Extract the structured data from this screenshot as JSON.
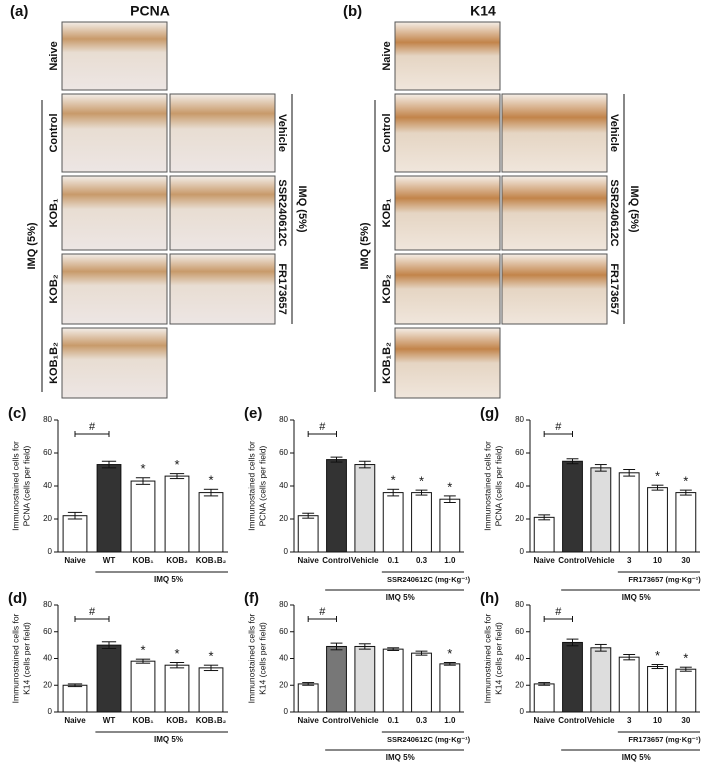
{
  "panel_a": {
    "label": "(a)",
    "title": "PCNA",
    "naive": "Naive",
    "rows": [
      "Control",
      "KOB₁",
      "KOB₂",
      "KOB₁B₂"
    ],
    "right_rows": [
      "Vehicle",
      "SSR240612C",
      "FR173657"
    ],
    "left_group": "IMQ (5%)",
    "right_group": "IMQ (5%)"
  },
  "panel_b": {
    "label": "(b)",
    "title": "K14",
    "naive": "Naive",
    "rows": [
      "Control",
      "KOB₁",
      "KOB₂",
      "KOB₁B₂"
    ],
    "right_rows": [
      "Vehicle",
      "SSR240612C",
      "FR173657"
    ],
    "left_group": "IMQ (5%)",
    "right_group": "IMQ (5%)"
  },
  "chart_data": [
    {
      "type": "bar",
      "panel": "(c)",
      "ylabel": [
        "Immunostained cells for",
        "PCNA (cells per field)"
      ],
      "categories": [
        "Naive",
        "WT",
        "KOB₁",
        "KOB₂",
        "KOB₁B₂"
      ],
      "values": [
        22,
        53,
        43,
        46,
        36
      ],
      "errors": [
        2,
        2,
        2,
        1.5,
        2
      ],
      "colors": [
        "#ffffff",
        "#333333",
        "#ffffff",
        "#ffffff",
        "#ffffff"
      ],
      "ylim": [
        0,
        80
      ],
      "yticks": [
        0,
        20,
        40,
        60,
        80
      ],
      "bracket": "#",
      "significance": [
        null,
        null,
        "*",
        "*",
        "*"
      ],
      "group_label": "IMQ 5%"
    },
    {
      "type": "bar",
      "panel": "(e)",
      "ylabel": [
        "Immunostained cells for",
        "PCNA (cells per field)"
      ],
      "categories": [
        "Naive",
        "Control",
        "Vehicle",
        "0.1",
        "0.3",
        "1.0"
      ],
      "values": [
        22,
        56,
        53,
        36,
        36,
        32
      ],
      "errors": [
        1.5,
        1.5,
        2,
        2,
        1.5,
        2
      ],
      "colors": [
        "#ffffff",
        "#333333",
        "#dddddd",
        "#ffffff",
        "#ffffff",
        "#ffffff"
      ],
      "ylim": [
        0,
        80
      ],
      "yticks": [
        0,
        20,
        40,
        60,
        80
      ],
      "bracket": "#",
      "significance": [
        null,
        null,
        null,
        "*",
        "*",
        "*"
      ],
      "dose_label": "SSR240612C (mg·Kg⁻¹)",
      "group_label": "IMQ 5%"
    },
    {
      "type": "bar",
      "panel": "(g)",
      "ylabel": [
        "Immunostained cells for",
        "PCNA (cells per field)"
      ],
      "categories": [
        "Naive",
        "Control",
        "Vehicle",
        "3",
        "10",
        "30"
      ],
      "values": [
        21,
        55,
        51,
        48,
        39,
        36
      ],
      "errors": [
        1.5,
        1.5,
        2,
        2,
        1.5,
        1.5
      ],
      "colors": [
        "#ffffff",
        "#333333",
        "#dddddd",
        "#ffffff",
        "#ffffff",
        "#ffffff"
      ],
      "ylim": [
        0,
        80
      ],
      "yticks": [
        0,
        20,
        40,
        60,
        80
      ],
      "bracket": "#",
      "significance": [
        null,
        null,
        null,
        null,
        "*",
        "*"
      ],
      "dose_label": "FR173657 (mg·Kg⁻¹)",
      "group_label": "IMQ 5%"
    },
    {
      "type": "bar",
      "panel": "(d)",
      "ylabel": [
        "Immunostained cells for",
        "K14 (cells per field)"
      ],
      "categories": [
        "Naive",
        "WT",
        "KOB₁",
        "KOB₂",
        "KOB₁B₂"
      ],
      "values": [
        20,
        50,
        38,
        35,
        33
      ],
      "errors": [
        1,
        2.5,
        1.5,
        2,
        2
      ],
      "colors": [
        "#ffffff",
        "#333333",
        "#ffffff",
        "#ffffff",
        "#ffffff"
      ],
      "ylim": [
        0,
        80
      ],
      "yticks": [
        0,
        20,
        40,
        60,
        80
      ],
      "bracket": "#",
      "significance": [
        null,
        null,
        "*",
        "*",
        "*"
      ],
      "group_label": "IMQ 5%"
    },
    {
      "type": "bar",
      "panel": "(f)",
      "ylabel": [
        "Immunostained cells for",
        "K14 (cells per field)"
      ],
      "categories": [
        "Naive",
        "Control",
        "Vehicle",
        "0.1",
        "0.3",
        "1.0"
      ],
      "values": [
        21,
        49,
        49,
        47,
        44,
        36
      ],
      "errors": [
        1,
        2.5,
        2,
        1,
        1.5,
        1
      ],
      "colors": [
        "#ffffff",
        "#777777",
        "#dddddd",
        "#ffffff",
        "#ffffff",
        "#ffffff"
      ],
      "ylim": [
        0,
        80
      ],
      "yticks": [
        0,
        20,
        40,
        60,
        80
      ],
      "bracket": "#",
      "significance": [
        null,
        null,
        null,
        null,
        null,
        "*"
      ],
      "dose_label": "SSR240612C (mg·Kg⁻¹)",
      "group_label": "IMQ 5%"
    },
    {
      "type": "bar",
      "panel": "(h)",
      "ylabel": [
        "Immunostained cells for",
        "K14 (cells per field)"
      ],
      "categories": [
        "Naive",
        "Control",
        "Vehicle",
        "3",
        "10",
        "30"
      ],
      "values": [
        21,
        52,
        48,
        41,
        34,
        32
      ],
      "errors": [
        1,
        2.5,
        2.5,
        2,
        1.5,
        1.5
      ],
      "colors": [
        "#ffffff",
        "#333333",
        "#dddddd",
        "#ffffff",
        "#ffffff",
        "#ffffff"
      ],
      "ylim": [
        0,
        80
      ],
      "yticks": [
        0,
        20,
        40,
        60,
        80
      ],
      "bracket": "#",
      "significance": [
        null,
        null,
        null,
        null,
        "*",
        "*"
      ],
      "dose_label": "FR173657 (mg·Kg⁻¹)",
      "group_label": "IMQ 5%"
    }
  ]
}
